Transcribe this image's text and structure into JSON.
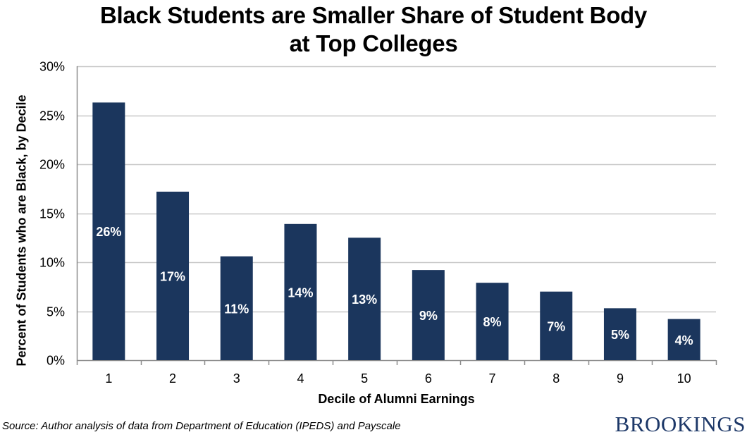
{
  "chart_data": {
    "type": "bar",
    "title": "Black Students are Smaller Share of Student Body at Top Colleges",
    "title_lines": [
      "Black Students are Smaller Share of Student Body",
      "at Top Colleges"
    ],
    "xlabel": "Decile of Alumni Earnings",
    "ylabel": "Percent of Students who are Black, by Decile",
    "categories": [
      "1",
      "2",
      "3",
      "4",
      "5",
      "6",
      "7",
      "8",
      "9",
      "10"
    ],
    "values": [
      26.3,
      17.2,
      10.6,
      13.9,
      12.5,
      9.2,
      7.9,
      7.0,
      5.3,
      4.2
    ],
    "data_labels": [
      "26%",
      "17%",
      "11%",
      "14%",
      "13%",
      "9%",
      "8%",
      "7%",
      "5%",
      "4%"
    ],
    "ylim": [
      0,
      30
    ],
    "yticks": [
      0,
      5,
      10,
      15,
      20,
      25,
      30
    ],
    "ytick_labels": [
      "0%",
      "5%",
      "10%",
      "15%",
      "20%",
      "25%",
      "30%"
    ],
    "grid": true,
    "legend": null,
    "bar_color": "#1b365d"
  },
  "footer": {
    "source": "Source: Author analysis of data from Department of Education (IPEDS) and Payscale",
    "logo": "BROOKINGS"
  }
}
